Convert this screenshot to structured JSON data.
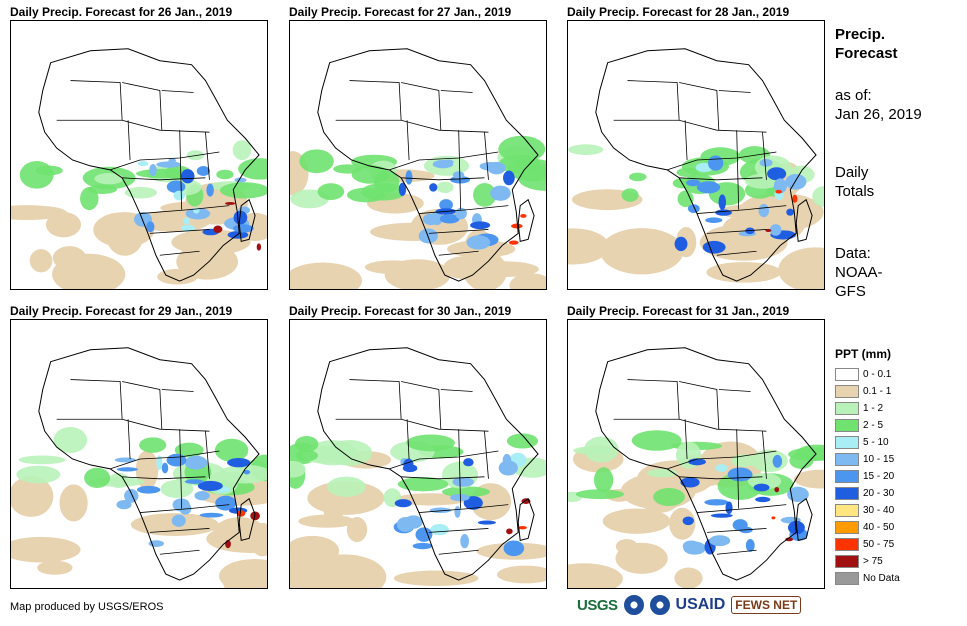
{
  "panels": [
    {
      "title": "Daily Precip. Forecast for 26 Jan., 2019"
    },
    {
      "title": "Daily Precip. Forecast for 27 Jan., 2019"
    },
    {
      "title": "Daily Precip. Forecast for 28 Jan., 2019"
    },
    {
      "title": "Daily Precip. Forecast for 29 Jan., 2019"
    },
    {
      "title": "Daily Precip. Forecast for 30 Jan., 2019"
    },
    {
      "title": "Daily Precip. Forecast for 31 Jan., 2019"
    }
  ],
  "side": {
    "title1": "Precip.",
    "title2": "Forecast",
    "asof1": "as of:",
    "asof2": "Jan 26, 2019",
    "totals1": "Daily",
    "totals2": "Totals",
    "data1": "Data:",
    "data2": "NOAA-",
    "data3": "GFS"
  },
  "legend": {
    "title": "PPT (mm)",
    "items": [
      {
        "label": "0 - 0.1",
        "color": "#ffffff"
      },
      {
        "label": "0.1 - 1",
        "color": "#e8d3b0"
      },
      {
        "label": "1 - 2",
        "color": "#b8f2b8"
      },
      {
        "label": "2 - 5",
        "color": "#6fe26f"
      },
      {
        "label": "5 - 10",
        "color": "#a8eef4"
      },
      {
        "label": "10 - 15",
        "color": "#7fb9f2"
      },
      {
        "label": "15 - 20",
        "color": "#4d96ef"
      },
      {
        "label": "20 - 30",
        "color": "#1f5ee0"
      },
      {
        "label": "30 - 40",
        "color": "#ffe680"
      },
      {
        "label": "40 - 50",
        "color": "#ff9a00"
      },
      {
        "label": "50 - 75",
        "color": "#ff3300"
      },
      {
        "label": "> 75",
        "color": "#a01010"
      },
      {
        "label": "No Data",
        "color": "#999999"
      }
    ]
  },
  "credit": "Map produced by USGS/EROS",
  "logos": {
    "usgs": "USGS",
    "usaid": "USAID",
    "fews": "FEWS NET"
  }
}
